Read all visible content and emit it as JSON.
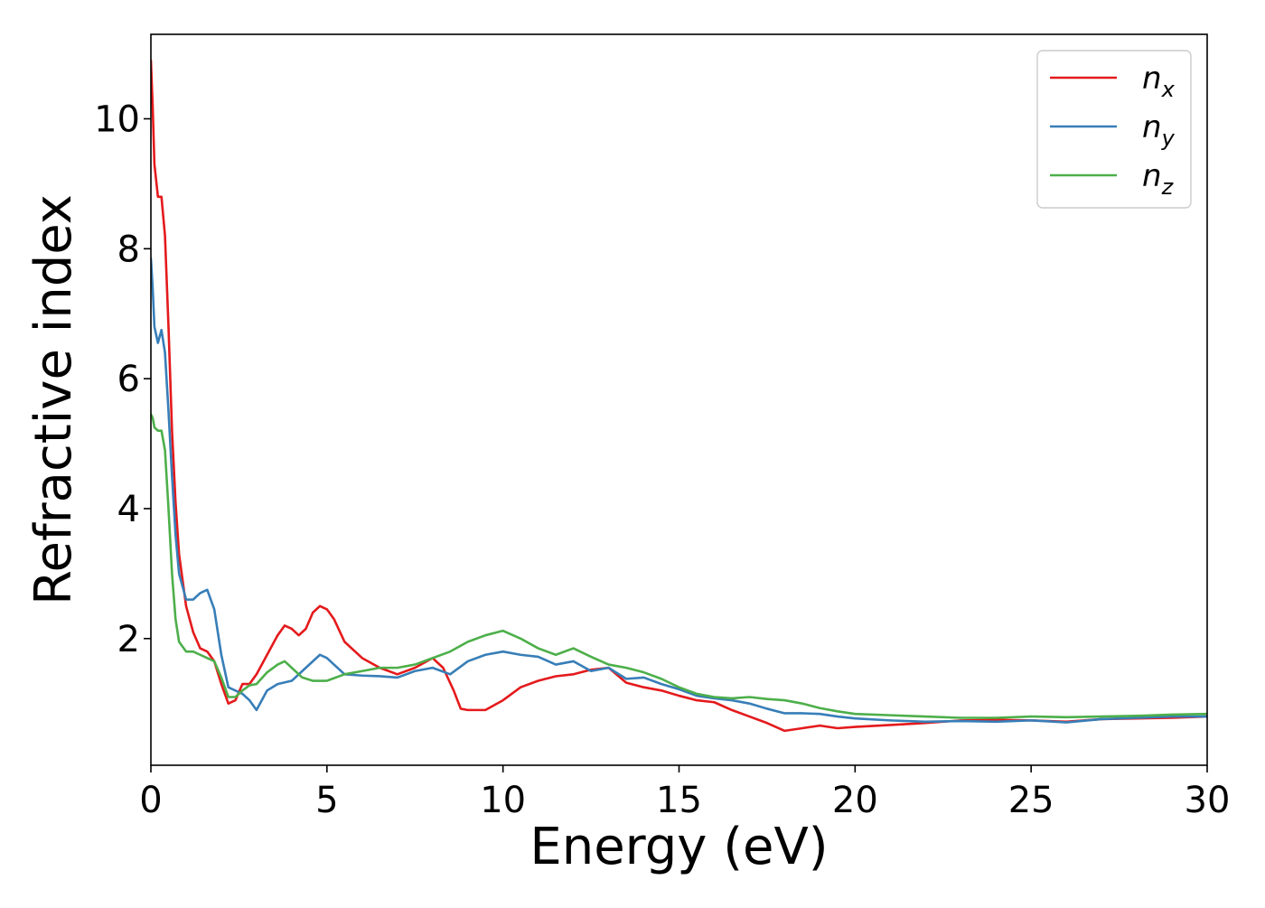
{
  "chart_data": {
    "type": "line",
    "title": "",
    "xlabel": "Energy (eV)",
    "ylabel": "Refractive index",
    "xlim": [
      0,
      30
    ],
    "ylim": [
      0.05,
      11.3
    ],
    "xticks": [
      0,
      5,
      10,
      15,
      20,
      25,
      30
    ],
    "yticks": [
      2,
      4,
      6,
      8,
      10
    ],
    "grid": false,
    "legend_position": "top-right",
    "series": [
      {
        "name": "n",
        "subscript": "x",
        "color": "#e41a1c",
        "x": [
          0,
          0.05,
          0.1,
          0.2,
          0.3,
          0.4,
          0.5,
          0.6,
          0.7,
          0.8,
          1.0,
          1.2,
          1.4,
          1.6,
          1.8,
          2.0,
          2.2,
          2.4,
          2.6,
          2.8,
          3.0,
          3.3,
          3.6,
          3.8,
          4.0,
          4.2,
          4.4,
          4.6,
          4.8,
          5.0,
          5.2,
          5.5,
          6.0,
          6.5,
          7.0,
          7.5,
          8.0,
          8.3,
          8.6,
          8.8,
          9.0,
          9.2,
          9.5,
          10.0,
          10.5,
          11.0,
          11.5,
          12.0,
          12.5,
          13.0,
          13.5,
          14.0,
          14.5,
          15.0,
          15.5,
          16.0,
          16.5,
          17.0,
          17.5,
          18.0,
          18.5,
          19.0,
          19.5,
          20.0,
          21.0,
          22.0,
          23.0,
          24.0,
          25.0,
          26.0,
          27.0,
          28.0,
          29.0,
          30.0
        ],
        "y": [
          10.9,
          10.2,
          9.3,
          8.8,
          8.8,
          8.2,
          6.8,
          5.2,
          4.1,
          3.3,
          2.5,
          2.1,
          1.85,
          1.8,
          1.65,
          1.3,
          1.0,
          1.05,
          1.3,
          1.3,
          1.45,
          1.75,
          2.05,
          2.2,
          2.15,
          2.05,
          2.15,
          2.4,
          2.5,
          2.45,
          2.3,
          1.95,
          1.7,
          1.55,
          1.45,
          1.55,
          1.7,
          1.55,
          1.2,
          0.92,
          0.9,
          0.9,
          0.9,
          1.05,
          1.25,
          1.35,
          1.42,
          1.45,
          1.52,
          1.55,
          1.32,
          1.25,
          1.2,
          1.12,
          1.05,
          1.02,
          0.9,
          0.8,
          0.7,
          0.58,
          0.62,
          0.66,
          0.62,
          0.64,
          0.67,
          0.7,
          0.74,
          0.75,
          0.74,
          0.72,
          0.76,
          0.77,
          0.78,
          0.8
        ]
      },
      {
        "name": "n",
        "subscript": "y",
        "color": "#377eb8",
        "x": [
          0,
          0.05,
          0.1,
          0.2,
          0.3,
          0.4,
          0.5,
          0.6,
          0.7,
          0.8,
          1.0,
          1.2,
          1.4,
          1.6,
          1.8,
          2.0,
          2.2,
          2.4,
          2.6,
          2.8,
          3.0,
          3.3,
          3.6,
          4.0,
          4.4,
          4.8,
          5.0,
          5.2,
          5.5,
          6.0,
          6.5,
          7.0,
          7.5,
          8.0,
          8.5,
          9.0,
          9.5,
          10.0,
          10.5,
          11.0,
          11.5,
          12.0,
          12.5,
          13.0,
          13.5,
          14.0,
          14.5,
          15.0,
          15.5,
          16.0,
          16.5,
          17.0,
          17.5,
          18.0,
          18.5,
          19.0,
          19.5,
          20.0,
          21.0,
          22.0,
          23.0,
          24.0,
          25.0,
          26.0,
          27.0,
          28.0,
          29.0,
          30.0
        ],
        "y": [
          7.85,
          7.4,
          6.8,
          6.55,
          6.75,
          6.4,
          5.5,
          4.5,
          3.6,
          3.0,
          2.6,
          2.6,
          2.7,
          2.75,
          2.45,
          1.75,
          1.25,
          1.2,
          1.15,
          1.05,
          0.9,
          1.2,
          1.3,
          1.35,
          1.55,
          1.75,
          1.7,
          1.6,
          1.45,
          1.43,
          1.42,
          1.4,
          1.5,
          1.55,
          1.45,
          1.65,
          1.75,
          1.8,
          1.75,
          1.72,
          1.6,
          1.65,
          1.5,
          1.55,
          1.38,
          1.4,
          1.3,
          1.22,
          1.12,
          1.08,
          1.05,
          1.0,
          0.92,
          0.85,
          0.85,
          0.84,
          0.8,
          0.77,
          0.74,
          0.72,
          0.73,
          0.72,
          0.74,
          0.71,
          0.76,
          0.78,
          0.8,
          0.8
        ]
      },
      {
        "name": "n",
        "subscript": "z",
        "color": "#4daf4a",
        "x": [
          0,
          0.05,
          0.1,
          0.2,
          0.3,
          0.4,
          0.5,
          0.6,
          0.7,
          0.8,
          1.0,
          1.2,
          1.4,
          1.6,
          1.8,
          2.0,
          2.2,
          2.4,
          2.6,
          2.8,
          3.0,
          3.3,
          3.6,
          3.8,
          4.0,
          4.3,
          4.6,
          5.0,
          5.5,
          6.0,
          6.5,
          7.0,
          7.5,
          8.0,
          8.5,
          9.0,
          9.5,
          10.0,
          10.5,
          11.0,
          11.5,
          12.0,
          12.5,
          13.0,
          13.5,
          14.0,
          14.5,
          15.0,
          15.5,
          16.0,
          16.5,
          17.0,
          17.5,
          18.0,
          18.5,
          19.0,
          19.5,
          20.0,
          21.0,
          22.0,
          23.0,
          24.0,
          25.0,
          26.0,
          27.0,
          28.0,
          29.0,
          30.0
        ],
        "y": [
          5.45,
          5.4,
          5.25,
          5.2,
          5.2,
          4.9,
          4.0,
          3.0,
          2.3,
          1.95,
          1.8,
          1.8,
          1.75,
          1.7,
          1.65,
          1.4,
          1.1,
          1.1,
          1.2,
          1.28,
          1.3,
          1.48,
          1.6,
          1.65,
          1.55,
          1.4,
          1.35,
          1.35,
          1.45,
          1.5,
          1.55,
          1.55,
          1.6,
          1.7,
          1.8,
          1.95,
          2.05,
          2.12,
          2.0,
          1.85,
          1.75,
          1.85,
          1.72,
          1.6,
          1.55,
          1.48,
          1.38,
          1.25,
          1.15,
          1.1,
          1.08,
          1.1,
          1.07,
          1.05,
          1.0,
          0.93,
          0.88,
          0.84,
          0.82,
          0.8,
          0.78,
          0.78,
          0.8,
          0.79,
          0.8,
          0.81,
          0.83,
          0.84
        ]
      }
    ]
  }
}
